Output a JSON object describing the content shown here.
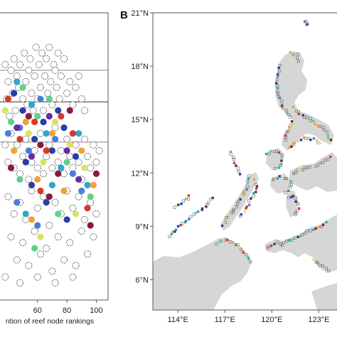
{
  "chart_data": [
    {
      "type": "scatter",
      "panel": "A",
      "xlabel": "ntion of reef node rankings",
      "xlim": [
        34,
        108
      ],
      "ylim": [
        0,
        100
      ],
      "xticks": [
        60,
        80,
        100
      ],
      "hlines": [
        80,
        69,
        55
      ],
      "grid": false,
      "series": [
        {
          "color": "#ffffff",
          "values": [
            [
              34,
              76
            ],
            [
              36,
              68
            ],
            [
              38,
              82
            ],
            [
              39,
              70
            ],
            [
              40,
              76
            ],
            [
              41,
              64
            ],
            [
              42,
              80
            ],
            [
              43,
              72
            ],
            [
              44,
              84
            ],
            [
              45,
              66
            ],
            [
              46,
              78
            ],
            [
              47,
              74
            ],
            [
              48,
              82
            ],
            [
              50,
              70
            ],
            [
              51,
              86
            ],
            [
              52,
              76
            ],
            [
              53,
              68
            ],
            [
              54,
              80
            ],
            [
              55,
              84
            ],
            [
              56,
              72
            ],
            [
              57,
              66
            ],
            [
              58,
              78
            ],
            [
              59,
              88
            ],
            [
              60,
              70
            ],
            [
              61,
              82
            ],
            [
              62,
              74
            ],
            [
              63,
              86
            ],
            [
              64,
              66
            ],
            [
              65,
              78
            ],
            [
              66,
              84
            ],
            [
              67,
              72
            ],
            [
              68,
              88
            ],
            [
              69,
              76
            ],
            [
              70,
              68
            ],
            [
              71,
              82
            ],
            [
              72,
              80
            ],
            [
              73,
              74
            ],
            [
              74,
              86
            ],
            [
              75,
              70
            ],
            [
              76,
              78
            ],
            [
              78,
              84
            ],
            [
              80,
              72
            ],
            [
              82,
              76
            ],
            [
              84,
              68
            ],
            [
              86,
              74
            ],
            [
              88,
              78
            ],
            [
              90,
              70
            ],
            [
              92,
              66
            ],
            [
              38,
              54
            ],
            [
              40,
              48
            ],
            [
              42,
              58
            ],
            [
              44,
              46
            ],
            [
              46,
              54
            ],
            [
              48,
              44
            ],
            [
              50,
              50
            ],
            [
              52,
              56
            ],
            [
              54,
              42
            ],
            [
              56,
              48
            ],
            [
              58,
              52
            ],
            [
              60,
              46
            ],
            [
              62,
              58
            ],
            [
              64,
              44
            ],
            [
              66,
              50
            ],
            [
              68,
              54
            ],
            [
              70,
              46
            ],
            [
              72,
              60
            ],
            [
              74,
              48
            ],
            [
              76,
              52
            ],
            [
              78,
              44
            ],
            [
              80,
              56
            ],
            [
              82,
              50
            ],
            [
              84,
              46
            ],
            [
              86,
              54
            ],
            [
              88,
              48
            ],
            [
              90,
              42
            ],
            [
              92,
              56
            ],
            [
              94,
              50
            ],
            [
              96,
              46
            ],
            [
              98,
              54
            ],
            [
              100,
              48
            ],
            [
              102,
              52
            ],
            [
              36,
              40
            ],
            [
              40,
              36
            ],
            [
              44,
              30
            ],
            [
              48,
              34
            ],
            [
              52,
              28
            ],
            [
              56,
              38
            ],
            [
              60,
              32
            ],
            [
              64,
              36
            ],
            [
              68,
              26
            ],
            [
              72,
              34
            ],
            [
              76,
              30
            ],
            [
              80,
              38
            ],
            [
              84,
              32
            ],
            [
              88,
              36
            ],
            [
              92,
              28
            ],
            [
              96,
              34
            ],
            [
              100,
              30
            ],
            [
              42,
              22
            ],
            [
              50,
              20
            ],
            [
              58,
              24
            ],
            [
              66,
              18
            ],
            [
              74,
              22
            ],
            [
              82,
              20
            ],
            [
              90,
              24
            ],
            [
              98,
              22
            ],
            [
              46,
              14
            ],
            [
              54,
              12
            ],
            [
              62,
              16
            ],
            [
              70,
              10
            ],
            [
              78,
              14
            ],
            [
              86,
              12
            ],
            [
              94,
              16
            ],
            [
              38,
              8
            ],
            [
              48,
              6
            ],
            [
              60,
              8
            ],
            [
              72,
              6
            ],
            [
              84,
              8
            ]
          ]
        },
        {
          "color": "#2b3ea8",
          "values": [
            [
              44,
              72
            ],
            [
              50,
              66
            ],
            [
              58,
              56
            ],
            [
              64,
              62
            ],
            [
              70,
              52
            ],
            [
              78,
              60
            ],
            [
              86,
              50
            ],
            [
              56,
              40
            ],
            [
              66,
              34
            ],
            [
              80,
              28
            ],
            [
              74,
              66
            ],
            [
              52,
              48
            ]
          ]
        },
        {
          "color": "#4a7dd6",
          "values": [
            [
              40,
              58
            ],
            [
              48,
              60
            ],
            [
              54,
              52
            ],
            [
              62,
              70
            ],
            [
              72,
              56
            ],
            [
              84,
              44
            ],
            [
              90,
              38
            ],
            [
              60,
              26
            ],
            [
              46,
              34
            ]
          ]
        },
        {
          "color": "#2ea8c8",
          "values": [
            [
              46,
              76
            ],
            [
              56,
              68
            ],
            [
              66,
              58
            ],
            [
              76,
              46
            ],
            [
              88,
              58
            ],
            [
              94,
              40
            ],
            [
              52,
              30
            ],
            [
              70,
              40
            ]
          ]
        },
        {
          "color": "#5fd18a",
          "values": [
            [
              42,
              62
            ],
            [
              50,
              74
            ],
            [
              60,
              64
            ],
            [
              68,
              70
            ],
            [
              80,
              48
            ],
            [
              96,
              36
            ],
            [
              58,
              18
            ],
            [
              74,
              30
            ],
            [
              48,
              42
            ]
          ]
        },
        {
          "color": "#d6e36a",
          "values": [
            [
              38,
              66
            ],
            [
              54,
              58
            ],
            [
              64,
              48
            ],
            [
              72,
              62
            ],
            [
              82,
              54
            ],
            [
              92,
              46
            ],
            [
              62,
              22
            ],
            [
              86,
              30
            ]
          ]
        },
        {
          "color": "#f0a23a",
          "values": [
            [
              44,
              52
            ],
            [
              52,
              62
            ],
            [
              60,
              42
            ],
            [
              70,
              58
            ],
            [
              78,
              38
            ],
            [
              90,
              52
            ],
            [
              56,
              28
            ],
            [
              98,
              40
            ]
          ]
        },
        {
          "color": "#d63b2a",
          "values": [
            [
              40,
              70
            ],
            [
              48,
              56
            ],
            [
              58,
              62
            ],
            [
              66,
              52
            ],
            [
              76,
              64
            ],
            [
              84,
              58
            ],
            [
              62,
              38
            ],
            [
              94,
              32
            ]
          ]
        },
        {
          "color": "#8a1a3c",
          "values": [
            [
              42,
              46
            ],
            [
              54,
              64
            ],
            [
              62,
              54
            ],
            [
              74,
              44
            ],
            [
              82,
              66
            ],
            [
              96,
              26
            ],
            [
              68,
              36
            ],
            [
              100,
              44
            ]
          ]
        },
        {
          "color": "#6a2aa0",
          "values": [
            [
              46,
              60
            ],
            [
              56,
              50
            ],
            [
              68,
              64
            ],
            [
              80,
              52
            ],
            [
              88,
              42
            ]
          ]
        }
      ]
    },
    {
      "type": "map",
      "panel": "B",
      "panel_label": "B",
      "xticks": [
        "114°E",
        "117°E",
        "120°E",
        "123°E"
      ],
      "yticks": [
        "6°N",
        "9°N",
        "12°N",
        "15°N",
        "18°N",
        "21°N"
      ],
      "lon_range": [
        112.4,
        124.3
      ],
      "lat_range": [
        4.3,
        21
      ],
      "land_color": "#d6d6d6",
      "reef_colors": [
        "#2b3ea8",
        "#4a7dd6",
        "#2ea8c8",
        "#5fd18a",
        "#d6e36a",
        "#f0a23a",
        "#d63b2a",
        "#8a1a3c"
      ]
    }
  ]
}
